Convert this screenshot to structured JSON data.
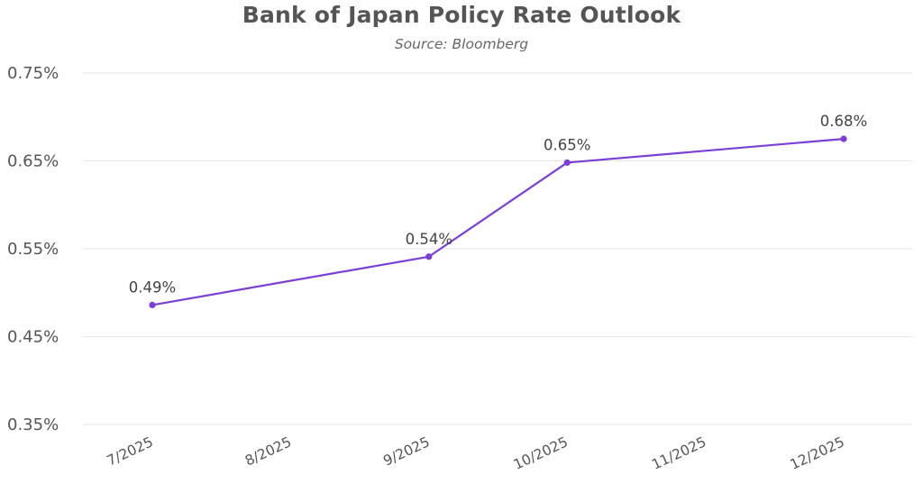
{
  "chart_data": {
    "type": "line",
    "title": "Bank of Japan Policy Rate Outlook",
    "subtitle": "Source: Bloomberg",
    "xlabel": "",
    "ylabel": "",
    "categories": [
      "7/2025",
      "8/2025",
      "9/2025",
      "10/2025",
      "11/2025",
      "12/2025"
    ],
    "y_ticks": [
      "0.35%",
      "0.45%",
      "0.55%",
      "0.65%",
      "0.75%"
    ],
    "ylim": [
      0.35,
      0.75
    ],
    "grid": "horizontal",
    "series": [
      {
        "color": "#7B3FD6",
        "points": [
          {
            "x": "7/2025",
            "y": 0.486,
            "label": "0.49%"
          },
          {
            "x": "9/2025",
            "y": 0.541,
            "label": "0.54%"
          },
          {
            "x": "10/2025",
            "y": 0.648,
            "label": "0.65%"
          },
          {
            "x": "12/2025",
            "y": 0.675,
            "label": "0.68%"
          }
        ]
      }
    ]
  }
}
